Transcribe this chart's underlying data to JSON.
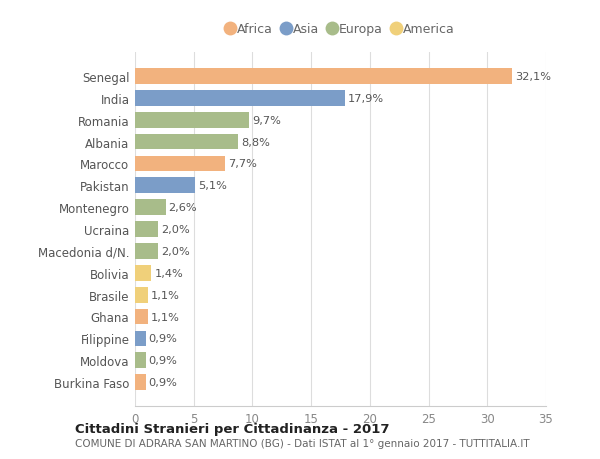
{
  "countries": [
    "Senegal",
    "India",
    "Romania",
    "Albania",
    "Marocco",
    "Pakistan",
    "Montenegro",
    "Ucraina",
    "Macedonia d/N.",
    "Bolivia",
    "Brasile",
    "Ghana",
    "Filippine",
    "Moldova",
    "Burkina Faso"
  ],
  "values": [
    32.1,
    17.9,
    9.7,
    8.8,
    7.7,
    5.1,
    2.6,
    2.0,
    2.0,
    1.4,
    1.1,
    1.1,
    0.9,
    0.9,
    0.9
  ],
  "labels": [
    "32,1%",
    "17,9%",
    "9,7%",
    "8,8%",
    "7,7%",
    "5,1%",
    "2,6%",
    "2,0%",
    "2,0%",
    "1,4%",
    "1,1%",
    "1,1%",
    "0,9%",
    "0,9%",
    "0,9%"
  ],
  "continents": [
    "Africa",
    "Asia",
    "Europa",
    "Europa",
    "Africa",
    "Asia",
    "Europa",
    "Europa",
    "Europa",
    "America",
    "America",
    "Africa",
    "Asia",
    "Europa",
    "Africa"
  ],
  "colors": {
    "Africa": "#F2B27E",
    "Asia": "#7B9DC8",
    "Europa": "#A8BC8A",
    "America": "#F0D07A"
  },
  "legend_order": [
    "Africa",
    "Asia",
    "Europa",
    "America"
  ],
  "title": "Cittadini Stranieri per Cittadinanza - 2017",
  "subtitle": "COMUNE DI ADRARA SAN MARTINO (BG) - Dati ISTAT al 1° gennaio 2017 - TUTTITALIA.IT",
  "xlim": [
    0,
    35
  ],
  "xticks": [
    0,
    5,
    10,
    15,
    20,
    25,
    30,
    35
  ],
  "bg_color": "#ffffff",
  "grid_color": "#dddddd",
  "bar_height": 0.72,
  "label_fontsize": 8.2,
  "tick_fontsize": 8.5,
  "legend_fontsize": 9.0,
  "title_fontsize": 9.5,
  "subtitle_fontsize": 7.5
}
